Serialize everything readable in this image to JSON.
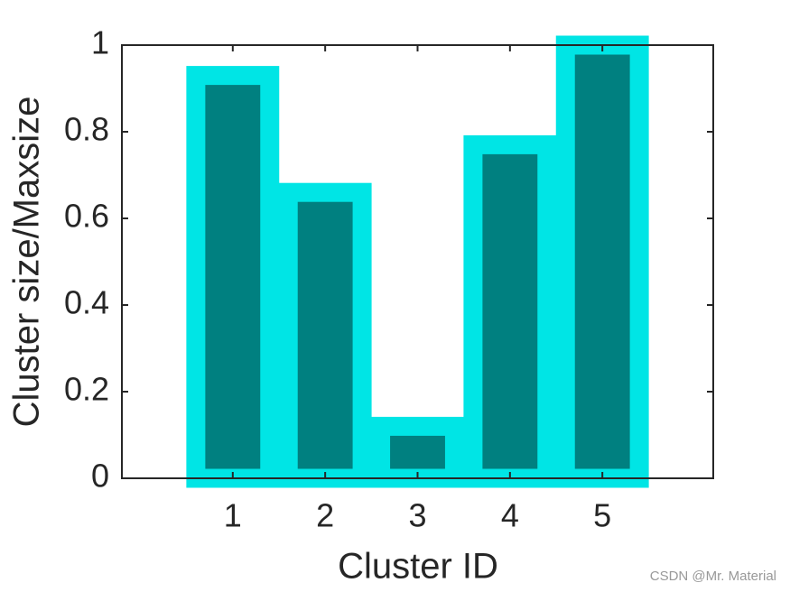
{
  "chart_data": {
    "type": "bar",
    "xlabel": "Cluster ID",
    "ylabel": "Cluster size/Maxsize",
    "x": [
      1,
      2,
      3,
      4,
      5
    ],
    "values": [
      0.93,
      0.66,
      0.12,
      0.77,
      1.0
    ],
    "color": "#008080",
    "edge_color": "#00e5e5",
    "xlim": [
      -0.2,
      6.2
    ],
    "xticks": [
      1,
      2,
      3,
      4,
      5
    ],
    "ylim": [
      0,
      1
    ],
    "yticks": [
      0,
      0.2,
      0.4,
      0.6,
      0.8,
      1
    ],
    "grid": false
  },
  "watermark": "CSDN @Mr. Material"
}
